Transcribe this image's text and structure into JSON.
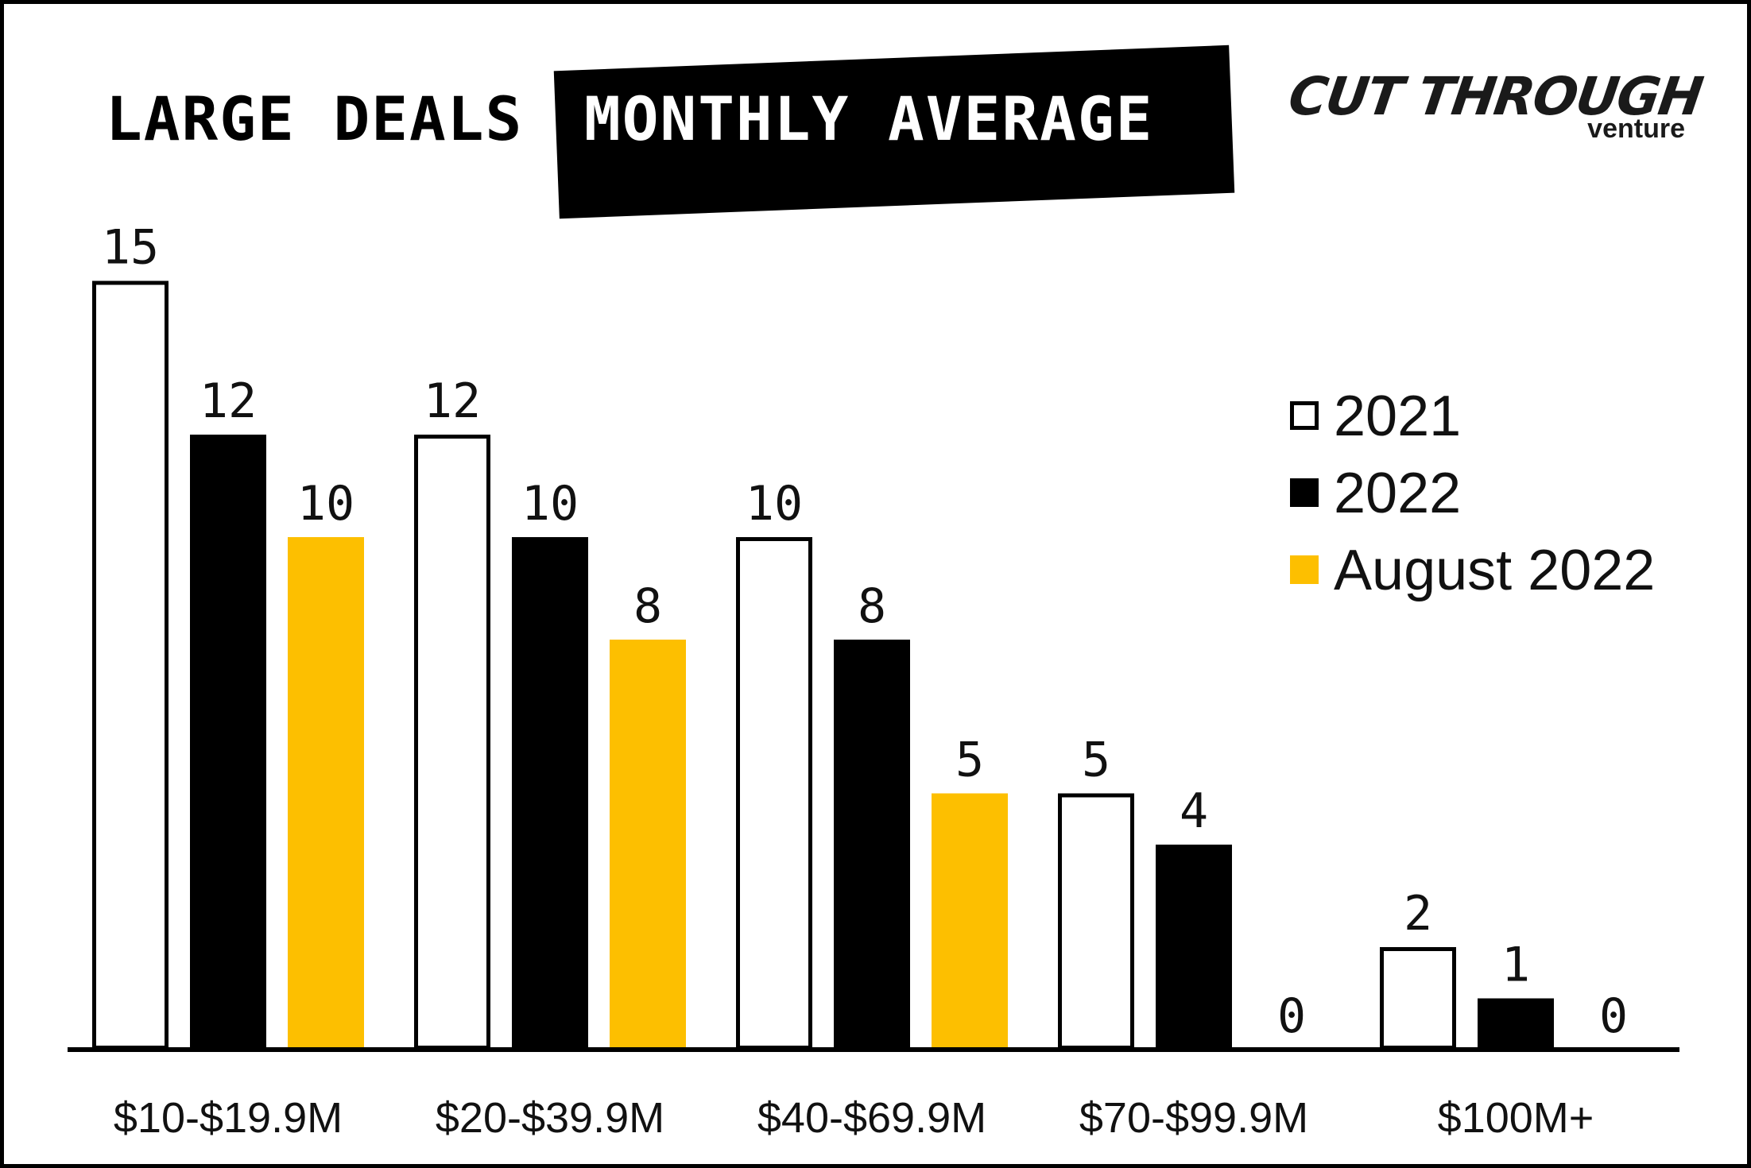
{
  "title": {
    "left": "LARGE DEALS",
    "right": "MONTHLY AVERAGE"
  },
  "logo": {
    "main": "CUT THROUGH",
    "sub": "venture"
  },
  "colors": {
    "series_2021_fill": "#ffffff",
    "series_2021_stroke": "#000000",
    "series_2022": "#000000",
    "series_aug2022": "#FDBF00",
    "axis": "#000000"
  },
  "chart_data": {
    "type": "bar",
    "title": "LARGE DEALS MONTHLY AVERAGE",
    "categories": [
      "$10-$19.9M",
      "$20-$39.9M",
      "$40-$69.9M",
      "$70-$99.9M",
      "$100M+"
    ],
    "series": [
      {
        "name": "2021",
        "values": [
          15,
          12,
          10,
          5,
          2
        ]
      },
      {
        "name": "2022",
        "values": [
          12,
          10,
          8,
          4,
          1
        ]
      },
      {
        "name": "August 2022",
        "values": [
          10,
          8,
          5,
          0,
          0
        ]
      }
    ],
    "ylim": [
      0,
      15
    ],
    "grid": false,
    "data_labels": true,
    "legend": "right"
  }
}
